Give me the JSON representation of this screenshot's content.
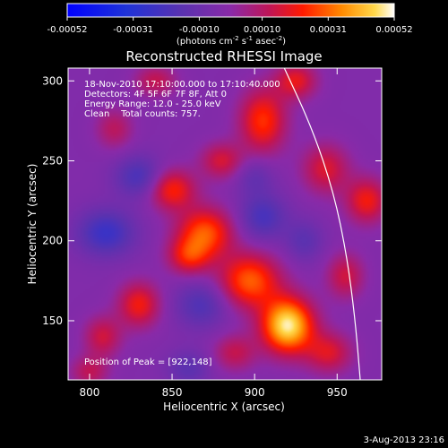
{
  "chart_data": {
    "type": "heatmap",
    "title": "Reconstructed RHESSI Image",
    "xlabel": "Heliocentric X (arcsec)",
    "ylabel": "Heliocentric Y (arcsec)",
    "xlim": [
      787,
      977
    ],
    "ylim": [
      113,
      308
    ],
    "x_ticks": [
      800,
      850,
      900,
      950
    ],
    "y_ticks": [
      150,
      200,
      250,
      300
    ],
    "x_tick_labels": [
      "800",
      "850",
      "900",
      "950"
    ],
    "y_tick_labels": [
      "150",
      "200",
      "250",
      "300"
    ],
    "colorbar": {
      "min": -0.00052,
      "max": 0.00052,
      "tick_values": [
        -0.00052,
        -0.00031,
        -0.0001,
        0.0001,
        0.00031,
        0.00052
      ],
      "tick_labels": [
        "-0.00052",
        "-0.00031",
        "-0.00010",
        "0.00010",
        "0.00031",
        "0.00052"
      ],
      "unit_prefix": "(photons cm",
      "unit_exp1": "-2",
      "unit_mid1": " s",
      "unit_exp2": "-1",
      "unit_mid2": " asec",
      "unit_exp3": "-2",
      "unit_suffix": ")"
    },
    "annotations": [
      "18-Nov-2010 17:10:00.000 to 17:10:40.000",
      "Detectors: 4F 5F 6F 7F 8F, Att 0",
      "Energy Range: 12.0 - 25.0 keV",
      "Clean    Total counts: 757."
    ],
    "peak_label": "Position of Peak = [922,148]",
    "peak": [
      922,
      148
    ],
    "limb_curve": [
      [
        918,
        308
      ],
      [
        935,
        270
      ],
      [
        948,
        230
      ],
      [
        956,
        190
      ],
      [
        961,
        150
      ],
      [
        964,
        113
      ]
    ],
    "blobs": [
      {
        "x": 920,
        "y": 147,
        "sx": 11,
        "sy": 12,
        "v": 0.00052
      },
      {
        "x": 897,
        "y": 175,
        "sx": 13,
        "sy": 12,
        "v": 0.00033
      },
      {
        "x": 870,
        "y": 205,
        "sx": 12,
        "sy": 11,
        "v": 0.00032
      },
      {
        "x": 850,
        "y": 232,
        "sx": 10,
        "sy": 9,
        "v": 0.00026
      },
      {
        "x": 860,
        "y": 190,
        "sx": 9,
        "sy": 8,
        "v": 0.00022
      },
      {
        "x": 830,
        "y": 160,
        "sx": 9,
        "sy": 10,
        "v": 0.00024
      },
      {
        "x": 808,
        "y": 140,
        "sx": 8,
        "sy": 9,
        "v": 0.00018
      },
      {
        "x": 905,
        "y": 275,
        "sx": 10,
        "sy": 14,
        "v": 0.00028
      },
      {
        "x": 925,
        "y": 300,
        "sx": 9,
        "sy": 8,
        "v": 0.00022
      },
      {
        "x": 943,
        "y": 245,
        "sx": 10,
        "sy": 11,
        "v": 0.0002
      },
      {
        "x": 968,
        "y": 225,
        "sx": 9,
        "sy": 10,
        "v": 0.00024
      },
      {
        "x": 955,
        "y": 178,
        "sx": 8,
        "sy": 10,
        "v": 0.00018
      },
      {
        "x": 945,
        "y": 130,
        "sx": 10,
        "sy": 9,
        "v": 0.0002
      },
      {
        "x": 888,
        "y": 130,
        "sx": 9,
        "sy": 8,
        "v": 0.00016
      },
      {
        "x": 880,
        "y": 250,
        "sx": 9,
        "sy": 8,
        "v": 0.00019
      },
      {
        "x": 815,
        "y": 270,
        "sx": 8,
        "sy": 9,
        "v": 0.00014
      },
      {
        "x": 800,
        "y": 118,
        "sx": 8,
        "sy": 7,
        "v": 0.00015
      },
      {
        "x": 840,
        "y": 300,
        "sx": 9,
        "sy": 7,
        "v": 0.00016
      },
      {
        "x": 810,
        "y": 205,
        "sx": 12,
        "sy": 10,
        "v": -0.00022
      },
      {
        "x": 830,
        "y": 240,
        "sx": 10,
        "sy": 9,
        "v": -0.00018
      },
      {
        "x": 868,
        "y": 160,
        "sx": 11,
        "sy": 10,
        "v": -0.00016
      },
      {
        "x": 905,
        "y": 215,
        "sx": 10,
        "sy": 10,
        "v": -0.00018
      },
      {
        "x": 930,
        "y": 200,
        "sx": 8,
        "sy": 9,
        "v": -0.00012
      },
      {
        "x": 860,
        "y": 120,
        "sx": 9,
        "sy": 8,
        "v": -0.00012
      },
      {
        "x": 900,
        "y": 240,
        "sx": 8,
        "sy": 8,
        "v": -0.0001
      }
    ],
    "base_level": -3e-05
  },
  "footer": {
    "date": "3-Aug-2013 23:16"
  }
}
